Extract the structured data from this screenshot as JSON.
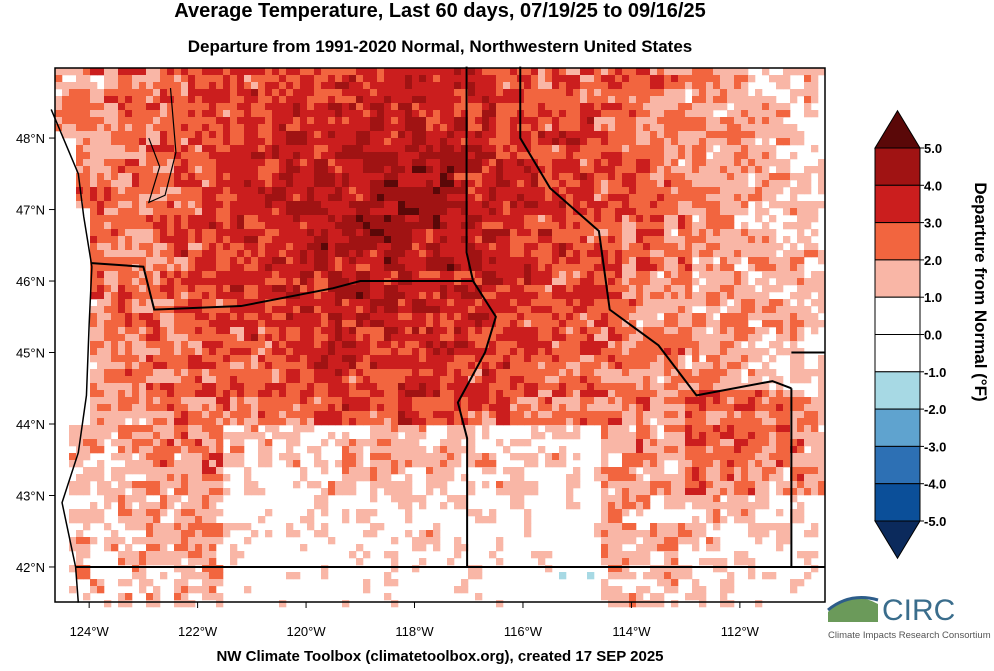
{
  "title": "Average Temperature, Last 60 days, 07/19/25 to 09/16/25",
  "subtitle": "Departure from 1991-2020 Normal, Northwestern United States",
  "footer": "NW Climate Toolbox (climatetoolbox.org), created 17 SEP 2025",
  "map": {
    "xlim": [
      -124.63,
      -110.43
    ],
    "ylim": [
      41.51,
      48.98
    ],
    "xticks": [
      {
        "value": -124,
        "label": "124°W"
      },
      {
        "value": -122,
        "label": "122°W"
      },
      {
        "value": -120,
        "label": "120°W"
      },
      {
        "value": -118,
        "label": "118°W"
      },
      {
        "value": -116,
        "label": "116°W"
      },
      {
        "value": -114,
        "label": "114°W"
      },
      {
        "value": -112,
        "label": "112°W"
      }
    ],
    "yticks": [
      {
        "value": 42,
        "label": "42°N"
      },
      {
        "value": 43,
        "label": "43°N"
      },
      {
        "value": 44,
        "label": "44°N"
      },
      {
        "value": 45,
        "label": "45°N"
      },
      {
        "value": 46,
        "label": "46°N"
      },
      {
        "value": 47,
        "label": "47°N"
      },
      {
        "value": 48,
        "label": "48°N"
      }
    ]
  },
  "colorbar": {
    "label": "Departure from Normal (°F)",
    "ticks": [
      {
        "value": 5,
        "label": "5.0"
      },
      {
        "value": 4,
        "label": "4.0"
      },
      {
        "value": 3,
        "label": "3.0"
      },
      {
        "value": 2,
        "label": "2.0"
      },
      {
        "value": 1,
        "label": "1.0"
      },
      {
        "value": 0,
        "label": "0.0"
      },
      {
        "value": -1,
        "label": "-1.0"
      },
      {
        "value": -2,
        "label": "-2.0"
      },
      {
        "value": -3,
        "label": "-3.0"
      },
      {
        "value": -4,
        "label": "-4.0"
      },
      {
        "value": -5,
        "label": "-5.0"
      }
    ],
    "colors": [
      "#5a0808",
      "#a01313",
      "#cb1e1e",
      "#f2653f",
      "#f9b6a6",
      "#ffffff",
      "#ffffff",
      "#a7d9e4",
      "#5fa3cf",
      "#2d70b4",
      "#0b4f99",
      "#0b2a5c"
    ]
  },
  "logo": {
    "name": "CIRC",
    "full": "Climate Impacts Research Consortium"
  }
}
